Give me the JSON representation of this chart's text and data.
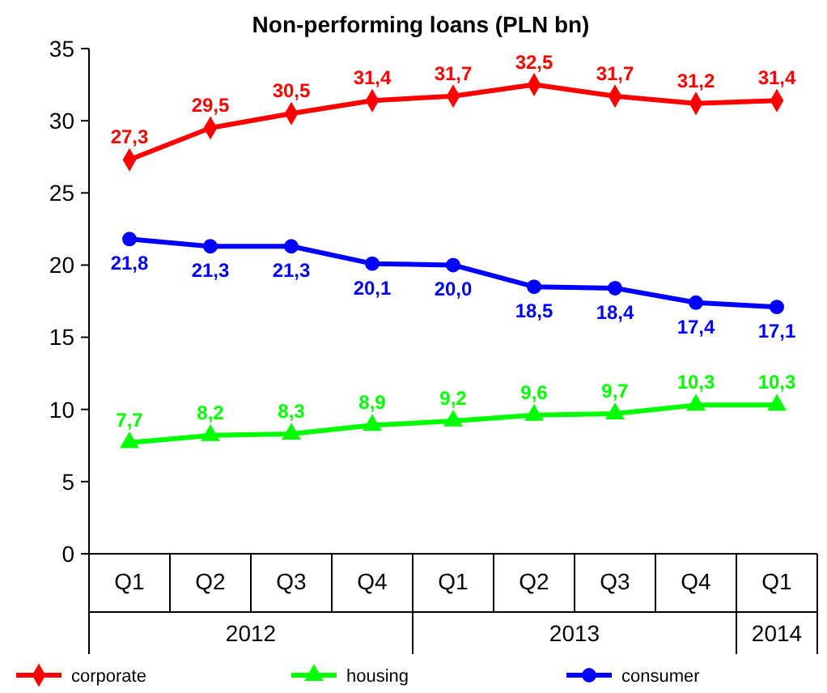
{
  "chart_data": {
    "type": "line",
    "title": "Non-performing loans (PLN bn)",
    "categories": [
      "Q1",
      "Q2",
      "Q3",
      "Q4",
      "Q1",
      "Q2",
      "Q3",
      "Q4",
      "Q1"
    ],
    "annotations": [
      "2012",
      "2013",
      "2014"
    ],
    "series": [
      {
        "name": "corporate",
        "color": "#ff0000",
        "marker": "diamond",
        "values": [
          27.3,
          29.5,
          30.5,
          31.4,
          31.7,
          32.5,
          31.7,
          31.2,
          31.4
        ],
        "value_labels": [
          "27,3",
          "29,5",
          "30,5",
          "31,4",
          "31,7",
          "32,5",
          "31,7",
          "31,2",
          "31,4"
        ]
      },
      {
        "name": "housing",
        "color": "#00ff00",
        "marker": "triangle",
        "values": [
          7.7,
          8.2,
          8.3,
          8.9,
          9.2,
          9.6,
          9.7,
          10.3,
          10.3
        ],
        "value_labels": [
          "7,7",
          "8,2",
          "8,3",
          "8,9",
          "9,2",
          "9,6",
          "9,7",
          "10,3",
          "10,3"
        ]
      },
      {
        "name": "consumer",
        "color": "#0000ff",
        "marker": "circle",
        "values": [
          21.8,
          21.3,
          21.3,
          20.1,
          20.0,
          18.5,
          18.4,
          17.4,
          17.1
        ],
        "value_labels": [
          "21,8",
          "21,3",
          "21,3",
          "20,1",
          "20,0",
          "18,5",
          "18,4",
          "17,4",
          "17,1"
        ]
      }
    ],
    "ylim": [
      0,
      35
    ],
    "yticks": [
      0,
      5,
      10,
      15,
      20,
      25,
      30,
      35
    ],
    "grid": false,
    "legend": "bottom"
  }
}
